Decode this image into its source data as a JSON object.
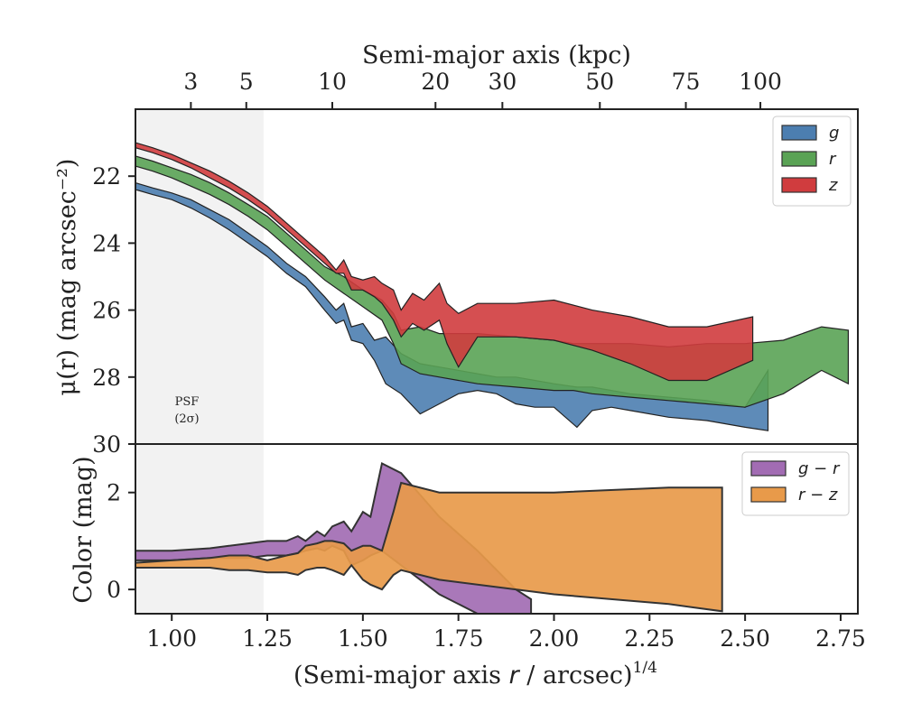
{
  "chart_data": [
    {
      "type": "area",
      "panel": "surface-brightness",
      "xlabel_top": "Semi-major axis (kpc)",
      "top_ticks": [
        {
          "label": "3",
          "x": 1.05
        },
        {
          "label": "5",
          "x": 1.195
        },
        {
          "label": "10",
          "x": 1.42
        },
        {
          "label": "20",
          "x": 1.69
        },
        {
          "label": "30",
          "x": 1.865
        },
        {
          "label": "50",
          "x": 2.12
        },
        {
          "label": "75",
          "x": 2.345
        },
        {
          "label": "100",
          "x": 2.54
        }
      ],
      "ylabel": "μ(r) (mag arcsec⁻²)",
      "ylim": [
        30,
        20
      ],
      "yticks": [
        "22",
        "24",
        "26",
        "28",
        "30"
      ],
      "xlim": [
        0.905,
        2.795
      ],
      "psf_label": [
        "PSF",
        "(2σ)"
      ],
      "psf_xmax": 1.24,
      "legend_position": "top-right",
      "series": [
        {
          "name": "g",
          "color": "#4c7eb0",
          "x": [
            0.905,
            0.95,
            1.0,
            1.05,
            1.1,
            1.15,
            1.2,
            1.25,
            1.3,
            1.35,
            1.4,
            1.43,
            1.45,
            1.47,
            1.5,
            1.53,
            1.56,
            1.6,
            1.65,
            1.7,
            1.75,
            1.8,
            1.85,
            1.9,
            1.95,
            2.0,
            2.06,
            2.1,
            2.15,
            2.2,
            2.3,
            2.4,
            2.5,
            2.56
          ],
          "y_upper": [
            22.2,
            22.35,
            22.5,
            22.7,
            23.0,
            23.3,
            23.7,
            24.1,
            24.6,
            25.0,
            25.6,
            26.0,
            25.8,
            26.5,
            26.4,
            26.9,
            26.8,
            27.3,
            27.6,
            27.7,
            27.8,
            27.9,
            28.0,
            28.0,
            28.1,
            28.2,
            28.3,
            28.3,
            28.4,
            28.5,
            28.6,
            28.7,
            28.9,
            27.8
          ],
          "y_lower": [
            22.4,
            22.55,
            22.7,
            22.95,
            23.25,
            23.6,
            24.0,
            24.4,
            24.9,
            25.3,
            26.0,
            26.4,
            26.3,
            26.9,
            27.0,
            27.5,
            28.2,
            28.5,
            29.1,
            28.8,
            28.5,
            28.4,
            28.5,
            28.8,
            28.9,
            28.9,
            29.5,
            29.0,
            28.9,
            29.0,
            29.2,
            29.3,
            29.5,
            29.6
          ]
        },
        {
          "name": "r",
          "color": "#5aa355",
          "x": [
            0.905,
            0.95,
            1.0,
            1.05,
            1.1,
            1.15,
            1.2,
            1.25,
            1.3,
            1.35,
            1.4,
            1.45,
            1.5,
            1.55,
            1.58,
            1.6,
            1.65,
            1.7,
            1.8,
            1.9,
            2.0,
            2.05,
            2.1,
            2.2,
            2.3,
            2.4,
            2.5,
            2.6,
            2.7,
            2.77
          ],
          "y_upper": [
            21.4,
            21.55,
            21.75,
            21.95,
            22.2,
            22.5,
            22.85,
            23.2,
            23.7,
            24.2,
            24.7,
            25.0,
            25.4,
            25.7,
            26.1,
            26.6,
            26.5,
            26.7,
            26.7,
            26.8,
            26.9,
            27.0,
            27.0,
            27.0,
            27.1,
            27.0,
            27.0,
            26.9,
            26.5,
            26.6
          ],
          "y_lower": [
            21.7,
            21.85,
            22.05,
            22.3,
            22.55,
            22.85,
            23.2,
            23.6,
            24.1,
            24.6,
            25.1,
            25.5,
            25.9,
            26.3,
            27.0,
            27.6,
            27.9,
            28.0,
            28.2,
            28.3,
            28.4,
            28.4,
            28.5,
            28.6,
            28.7,
            28.8,
            28.9,
            28.5,
            27.8,
            28.2
          ]
        },
        {
          "name": "z",
          "color": "#d03c3e",
          "x": [
            0.905,
            0.95,
            1.0,
            1.05,
            1.1,
            1.15,
            1.2,
            1.25,
            1.3,
            1.35,
            1.4,
            1.43,
            1.45,
            1.47,
            1.5,
            1.53,
            1.55,
            1.58,
            1.6,
            1.63,
            1.66,
            1.7,
            1.72,
            1.75,
            1.8,
            1.9,
            2.0,
            2.1,
            2.2,
            2.3,
            2.4,
            2.52
          ],
          "y_upper": [
            21.0,
            21.15,
            21.35,
            21.6,
            21.85,
            22.15,
            22.5,
            22.9,
            23.4,
            23.9,
            24.4,
            24.8,
            24.5,
            25.0,
            25.1,
            25.0,
            25.2,
            25.4,
            26.0,
            25.5,
            25.7,
            25.2,
            25.8,
            26.1,
            25.8,
            25.8,
            25.7,
            26.0,
            26.2,
            26.5,
            26.5,
            26.2
          ],
          "y_lower": [
            21.15,
            21.3,
            21.5,
            21.75,
            22.05,
            22.35,
            22.7,
            23.1,
            23.6,
            24.1,
            24.6,
            24.9,
            24.9,
            25.4,
            25.4,
            25.6,
            25.8,
            26.3,
            26.8,
            26.4,
            26.6,
            26.3,
            27.0,
            27.7,
            26.8,
            26.8,
            26.9,
            27.2,
            27.6,
            28.1,
            28.1,
            27.5
          ]
        }
      ]
    },
    {
      "type": "area",
      "panel": "color",
      "xlabel": "(Semi-major axis r / arcsec)^{1/4}",
      "xlabel_main": "(Semi-major axis ",
      "xlabel_var": "r",
      "xlabel_tail": " / arcsec)",
      "xlabel_sup": "1/4",
      "ylabel": "Color (mag)",
      "ylim": [
        -0.5,
        3.0
      ],
      "yticks": [
        "0",
        "2"
      ],
      "xlim": [
        0.905,
        2.795
      ],
      "xticks": [
        "1.00",
        "1.25",
        "1.50",
        "1.75",
        "2.00",
        "2.25",
        "2.50",
        "2.75"
      ],
      "legend_position": "top-right",
      "series": [
        {
          "name": "g − r",
          "color": "#a26cb3",
          "x": [
            0.905,
            1.0,
            1.1,
            1.15,
            1.2,
            1.25,
            1.3,
            1.33,
            1.35,
            1.38,
            1.4,
            1.42,
            1.45,
            1.47,
            1.5,
            1.52,
            1.55,
            1.6,
            1.7,
            1.8,
            1.9,
            1.94
          ],
          "y_upper": [
            0.8,
            0.8,
            0.85,
            0.9,
            0.95,
            1.0,
            1.0,
            1.1,
            1.0,
            1.2,
            1.1,
            1.3,
            1.4,
            1.2,
            1.6,
            1.5,
            2.6,
            2.4,
            1.5,
            0.8,
            0.0,
            -0.2
          ],
          "y_lower": [
            0.6,
            0.6,
            0.65,
            0.65,
            0.65,
            0.7,
            0.7,
            0.75,
            0.8,
            0.85,
            0.8,
            0.9,
            0.8,
            0.5,
            0.6,
            0.7,
            0.8,
            0.5,
            -0.1,
            -0.5,
            -0.5,
            -0.5
          ]
        },
        {
          "name": "r − z",
          "color": "#e89a4a",
          "x": [
            0.905,
            1.0,
            1.1,
            1.15,
            1.2,
            1.25,
            1.3,
            1.33,
            1.35,
            1.38,
            1.4,
            1.42,
            1.45,
            1.47,
            1.5,
            1.52,
            1.55,
            1.58,
            1.6,
            1.7,
            2.0,
            2.3,
            2.44
          ],
          "y_upper": [
            0.55,
            0.6,
            0.65,
            0.7,
            0.7,
            0.6,
            0.7,
            0.75,
            0.9,
            0.95,
            1.0,
            1.0,
            0.95,
            0.8,
            0.9,
            0.9,
            0.8,
            1.6,
            2.2,
            2.0,
            2.0,
            2.1,
            2.1
          ],
          "y_lower": [
            0.45,
            0.45,
            0.45,
            0.4,
            0.4,
            0.35,
            0.35,
            0.3,
            0.4,
            0.45,
            0.45,
            0.4,
            0.3,
            0.5,
            0.2,
            0.1,
            0.0,
            0.3,
            0.4,
            0.2,
            -0.1,
            -0.3,
            -0.45
          ]
        }
      ]
    }
  ]
}
